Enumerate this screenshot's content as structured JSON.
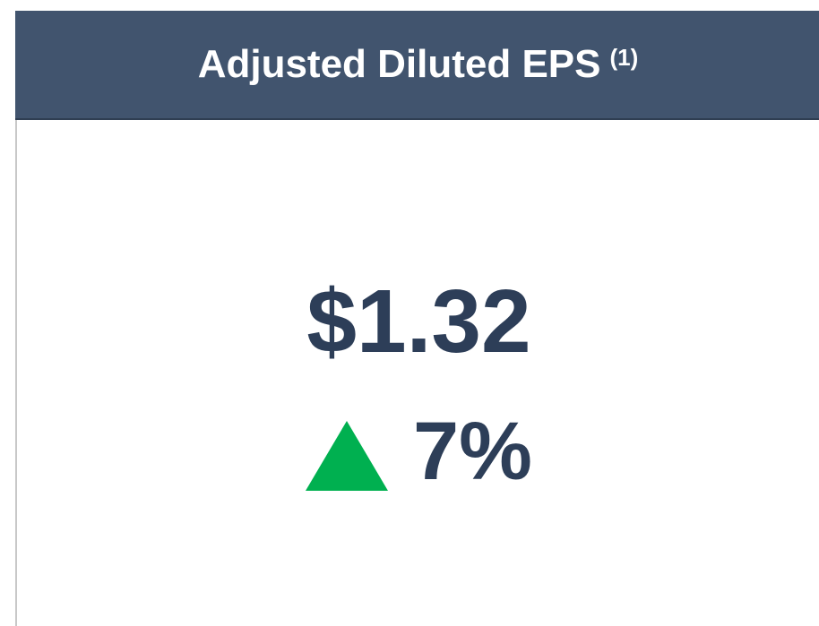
{
  "header": {
    "title": "Adjusted Diluted EPS",
    "footnote": "(1)"
  },
  "metric": {
    "value": "$1.32",
    "change": "7%"
  }
}
